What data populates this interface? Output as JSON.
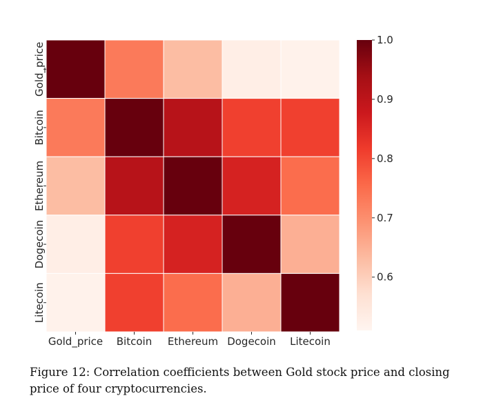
{
  "chart_data": {
    "type": "heatmap",
    "title": "",
    "xlabel": "",
    "ylabel": "",
    "categories": [
      "Gold_price",
      "Bitcoin",
      "Ethereum",
      "Dogecoin",
      "Litecoin"
    ],
    "matrix": [
      [
        1.0,
        0.73,
        0.63,
        0.53,
        0.52
      ],
      [
        0.73,
        1.0,
        0.91,
        0.81,
        0.81
      ],
      [
        0.63,
        0.91,
        1.0,
        0.86,
        0.75
      ],
      [
        0.53,
        0.81,
        0.86,
        1.0,
        0.65
      ],
      [
        0.52,
        0.81,
        0.75,
        0.65,
        1.0
      ]
    ],
    "color_range": [
      0.51,
      1.0
    ],
    "colormap": "Reds",
    "colorbar_ticks": [
      "0.6",
      "0.7",
      "0.8",
      "0.9",
      "1.0"
    ],
    "grid": false
  },
  "caption": "Figure 12: Correlation coefficients between Gold stock price and closing price of four cryptocurrencies."
}
